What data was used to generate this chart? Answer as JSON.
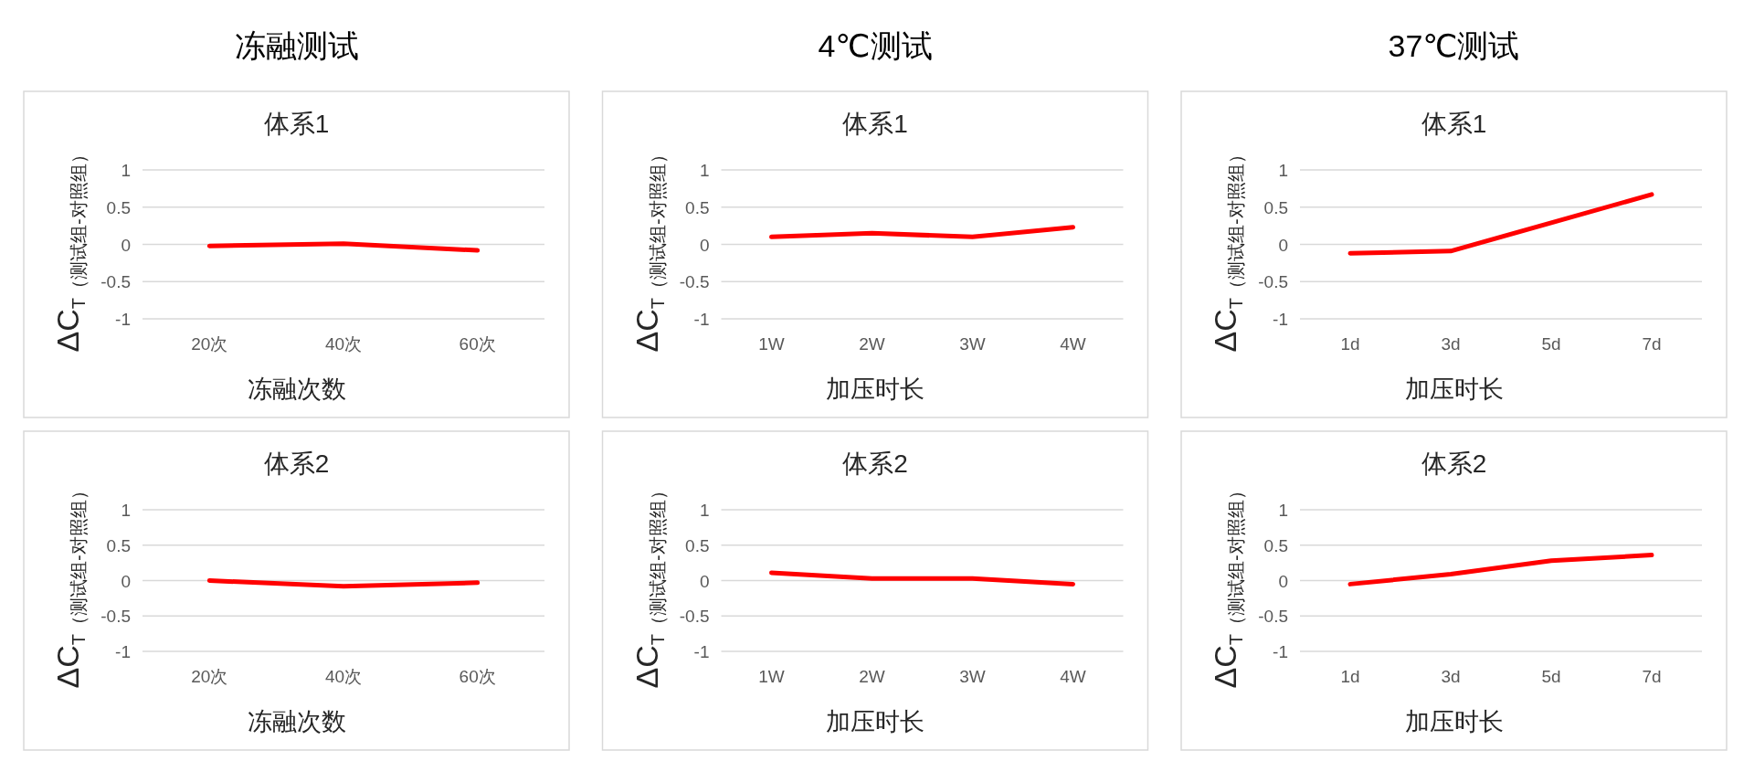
{
  "chart_data": [
    {
      "type": "line",
      "title": "冻融测试",
      "subtitle": "体系1",
      "xlabel": "冻融次数",
      "ylabel": "ΔC$_{T（测试组-对照组）}$",
      "categories": [
        "20次",
        "40次",
        "60次"
      ],
      "values": [
        -0.02,
        0.01,
        -0.08
      ],
      "color": "#ff0000",
      "line_style": "solid",
      "ylim": [
        -1,
        1
      ],
      "yticks": [
        -1,
        -0.5,
        0,
        0.5,
        1
      ],
      "grid": "y"
    },
    {
      "type": "line",
      "title": "4℃测试",
      "subtitle": "体系1",
      "xlabel": "加压时长",
      "ylabel": "ΔC$_{T（测试组-对照组）}$",
      "categories": [
        "1W",
        "2W",
        "3W",
        "4W"
      ],
      "values": [
        0.1,
        0.15,
        0.1,
        0.23
      ],
      "color": "#ff0000",
      "line_style": "solid",
      "ylim": [
        -1,
        1
      ],
      "yticks": [
        -1,
        -0.5,
        0,
        0.5,
        1
      ],
      "grid": "y"
    },
    {
      "type": "line",
      "title": "37℃测试",
      "subtitle": "体系1",
      "xlabel": "加压时长",
      "ylabel": "ΔC$_{T（测试组-对照组）}$",
      "categories": [
        "1d",
        "3d",
        "5d",
        "7d"
      ],
      "values": [
        -0.12,
        -0.09,
        0.29,
        0.67
      ],
      "color": "#ff0000",
      "line_style": "solid",
      "ylim": [
        -1,
        1
      ],
      "yticks": [
        -1,
        -0.5,
        0,
        0.5,
        1
      ],
      "grid": "y"
    },
    {
      "type": "line",
      "subtitle": "体系2",
      "xlabel": "冻融次数",
      "ylabel": "ΔC$_{T（测试组-对照组）}$",
      "categories": [
        "20次",
        "40次",
        "60次"
      ],
      "values": [
        0,
        -0.08,
        -0.03
      ],
      "color": "#ff0000",
      "line_style": "solid",
      "ylim": [
        -1,
        1
      ],
      "yticks": [
        -1,
        -0.5,
        0,
        0.5,
        1
      ],
      "grid": "y"
    },
    {
      "type": "line",
      "subtitle": "体系2",
      "xlabel": "加压时长",
      "ylabel": "ΔC$_{T（测试组-对照组）}$",
      "categories": [
        "1W",
        "2W",
        "3W",
        "4W"
      ],
      "values": [
        0.11,
        0.03,
        0.03,
        -0.05
      ],
      "color": "#ff0000",
      "line_style": "solid",
      "ylim": [
        -1,
        1
      ],
      "yticks": [
        -1,
        -0.5,
        0,
        0.5,
        1
      ],
      "grid": "y"
    },
    {
      "type": "line",
      "subtitle": "体系2",
      "xlabel": "加压时长",
      "ylabel": "ΔC$_{T（测试组-对照组）}$",
      "categories": [
        "1d",
        "3d",
        "5d",
        "7d"
      ],
      "values": [
        -0.05,
        0.09,
        0.28,
        0.36
      ],
      "color": "#ff0000",
      "line_style": "solid",
      "ylim": [
        -1,
        1
      ],
      "yticks": [
        -1,
        -0.5,
        0,
        0.5,
        1
      ],
      "grid": "y"
    }
  ]
}
